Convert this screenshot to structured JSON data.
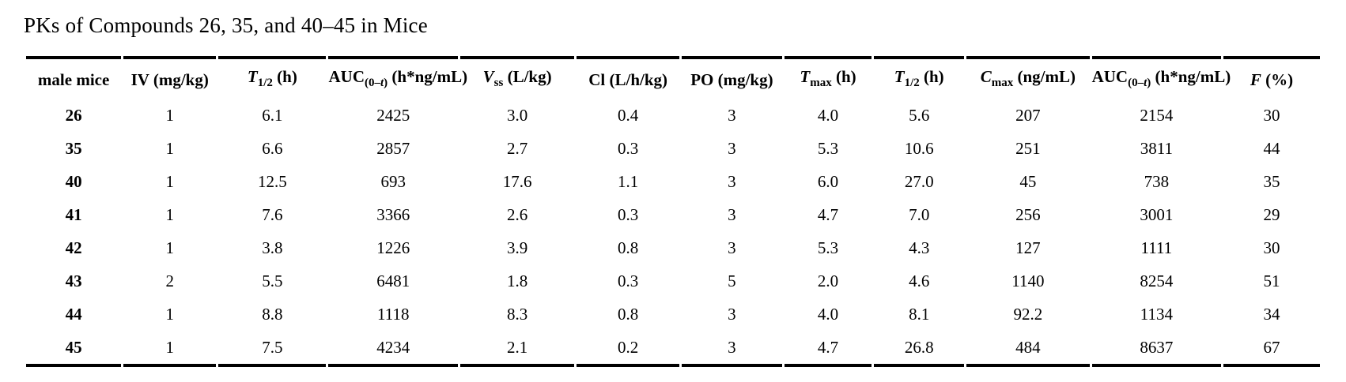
{
  "title": "PKs of Compounds 26, 35, and 40–45 in Mice",
  "colors": {
    "text": "#000000",
    "background": "#ffffff",
    "rule": "#000000"
  },
  "table": {
    "headers": [
      {
        "name": "male-mice",
        "segments": [
          {
            "t": "male mice"
          }
        ]
      },
      {
        "name": "iv-dose",
        "segments": [
          {
            "t": "IV (mg/kg)"
          }
        ]
      },
      {
        "name": "iv-t-half",
        "segments": [
          {
            "t": "T",
            "i": true
          },
          {
            "t": "1/2",
            "sub": true
          },
          {
            "t": " (h)"
          }
        ]
      },
      {
        "name": "iv-auc",
        "segments": [
          {
            "t": "AUC"
          },
          {
            "t": "(0–",
            "sub": true
          },
          {
            "t": "t",
            "sub": true,
            "i": true
          },
          {
            "t": ")",
            "sub": true
          },
          {
            "t": " (h*ng/mL)"
          }
        ]
      },
      {
        "name": "vss",
        "segments": [
          {
            "t": "V",
            "i": true
          },
          {
            "t": "ss",
            "sub": true
          },
          {
            "t": " (L/kg)"
          }
        ]
      },
      {
        "name": "clearance",
        "segments": [
          {
            "t": "Cl (L/h/kg)"
          }
        ]
      },
      {
        "name": "po-dose",
        "segments": [
          {
            "t": "PO (mg/kg)"
          }
        ]
      },
      {
        "name": "tmax",
        "segments": [
          {
            "t": "T",
            "i": true
          },
          {
            "t": "max",
            "sub": true
          },
          {
            "t": " (h)"
          }
        ]
      },
      {
        "name": "po-t-half",
        "segments": [
          {
            "t": "T",
            "i": true
          },
          {
            "t": "1/2",
            "sub": true
          },
          {
            "t": " (h)"
          }
        ]
      },
      {
        "name": "cmax",
        "segments": [
          {
            "t": "C",
            "i": true
          },
          {
            "t": "max",
            "sub": true
          },
          {
            "t": " (ng/mL)"
          }
        ]
      },
      {
        "name": "po-auc",
        "segments": [
          {
            "t": "AUC"
          },
          {
            "t": "(0–",
            "sub": true
          },
          {
            "t": "t",
            "sub": true,
            "i": true
          },
          {
            "t": ")",
            "sub": true
          },
          {
            "t": " (h*ng/mL)"
          }
        ]
      },
      {
        "name": "bioavailability",
        "segments": [
          {
            "t": "F",
            "i": true
          },
          {
            "t": " (%)"
          }
        ]
      }
    ],
    "rows": [
      {
        "compound": "26",
        "values": [
          "1",
          "6.1",
          "2425",
          "3.0",
          "0.4",
          "3",
          "4.0",
          "5.6",
          "207",
          "2154",
          "30"
        ]
      },
      {
        "compound": "35",
        "values": [
          "1",
          "6.6",
          "2857",
          "2.7",
          "0.3",
          "3",
          "5.3",
          "10.6",
          "251",
          "3811",
          "44"
        ]
      },
      {
        "compound": "40",
        "values": [
          "1",
          "12.5",
          "693",
          "17.6",
          "1.1",
          "3",
          "6.0",
          "27.0",
          "45",
          "738",
          "35"
        ]
      },
      {
        "compound": "41",
        "values": [
          "1",
          "7.6",
          "3366",
          "2.6",
          "0.3",
          "3",
          "4.7",
          "7.0",
          "256",
          "3001",
          "29"
        ]
      },
      {
        "compound": "42",
        "values": [
          "1",
          "3.8",
          "1226",
          "3.9",
          "0.8",
          "3",
          "5.3",
          "4.3",
          "127",
          "1111",
          "30"
        ]
      },
      {
        "compound": "43",
        "values": [
          "2",
          "5.5",
          "6481",
          "1.8",
          "0.3",
          "5",
          "2.0",
          "4.6",
          "1140",
          "8254",
          "51"
        ]
      },
      {
        "compound": "44",
        "values": [
          "1",
          "8.8",
          "1118",
          "8.3",
          "0.8",
          "3",
          "4.0",
          "8.1",
          "92.2",
          "1134",
          "34"
        ]
      },
      {
        "compound": "45",
        "values": [
          "1",
          "7.5",
          "4234",
          "2.1",
          "0.2",
          "3",
          "4.7",
          "26.8",
          "484",
          "8637",
          "67"
        ]
      }
    ]
  }
}
